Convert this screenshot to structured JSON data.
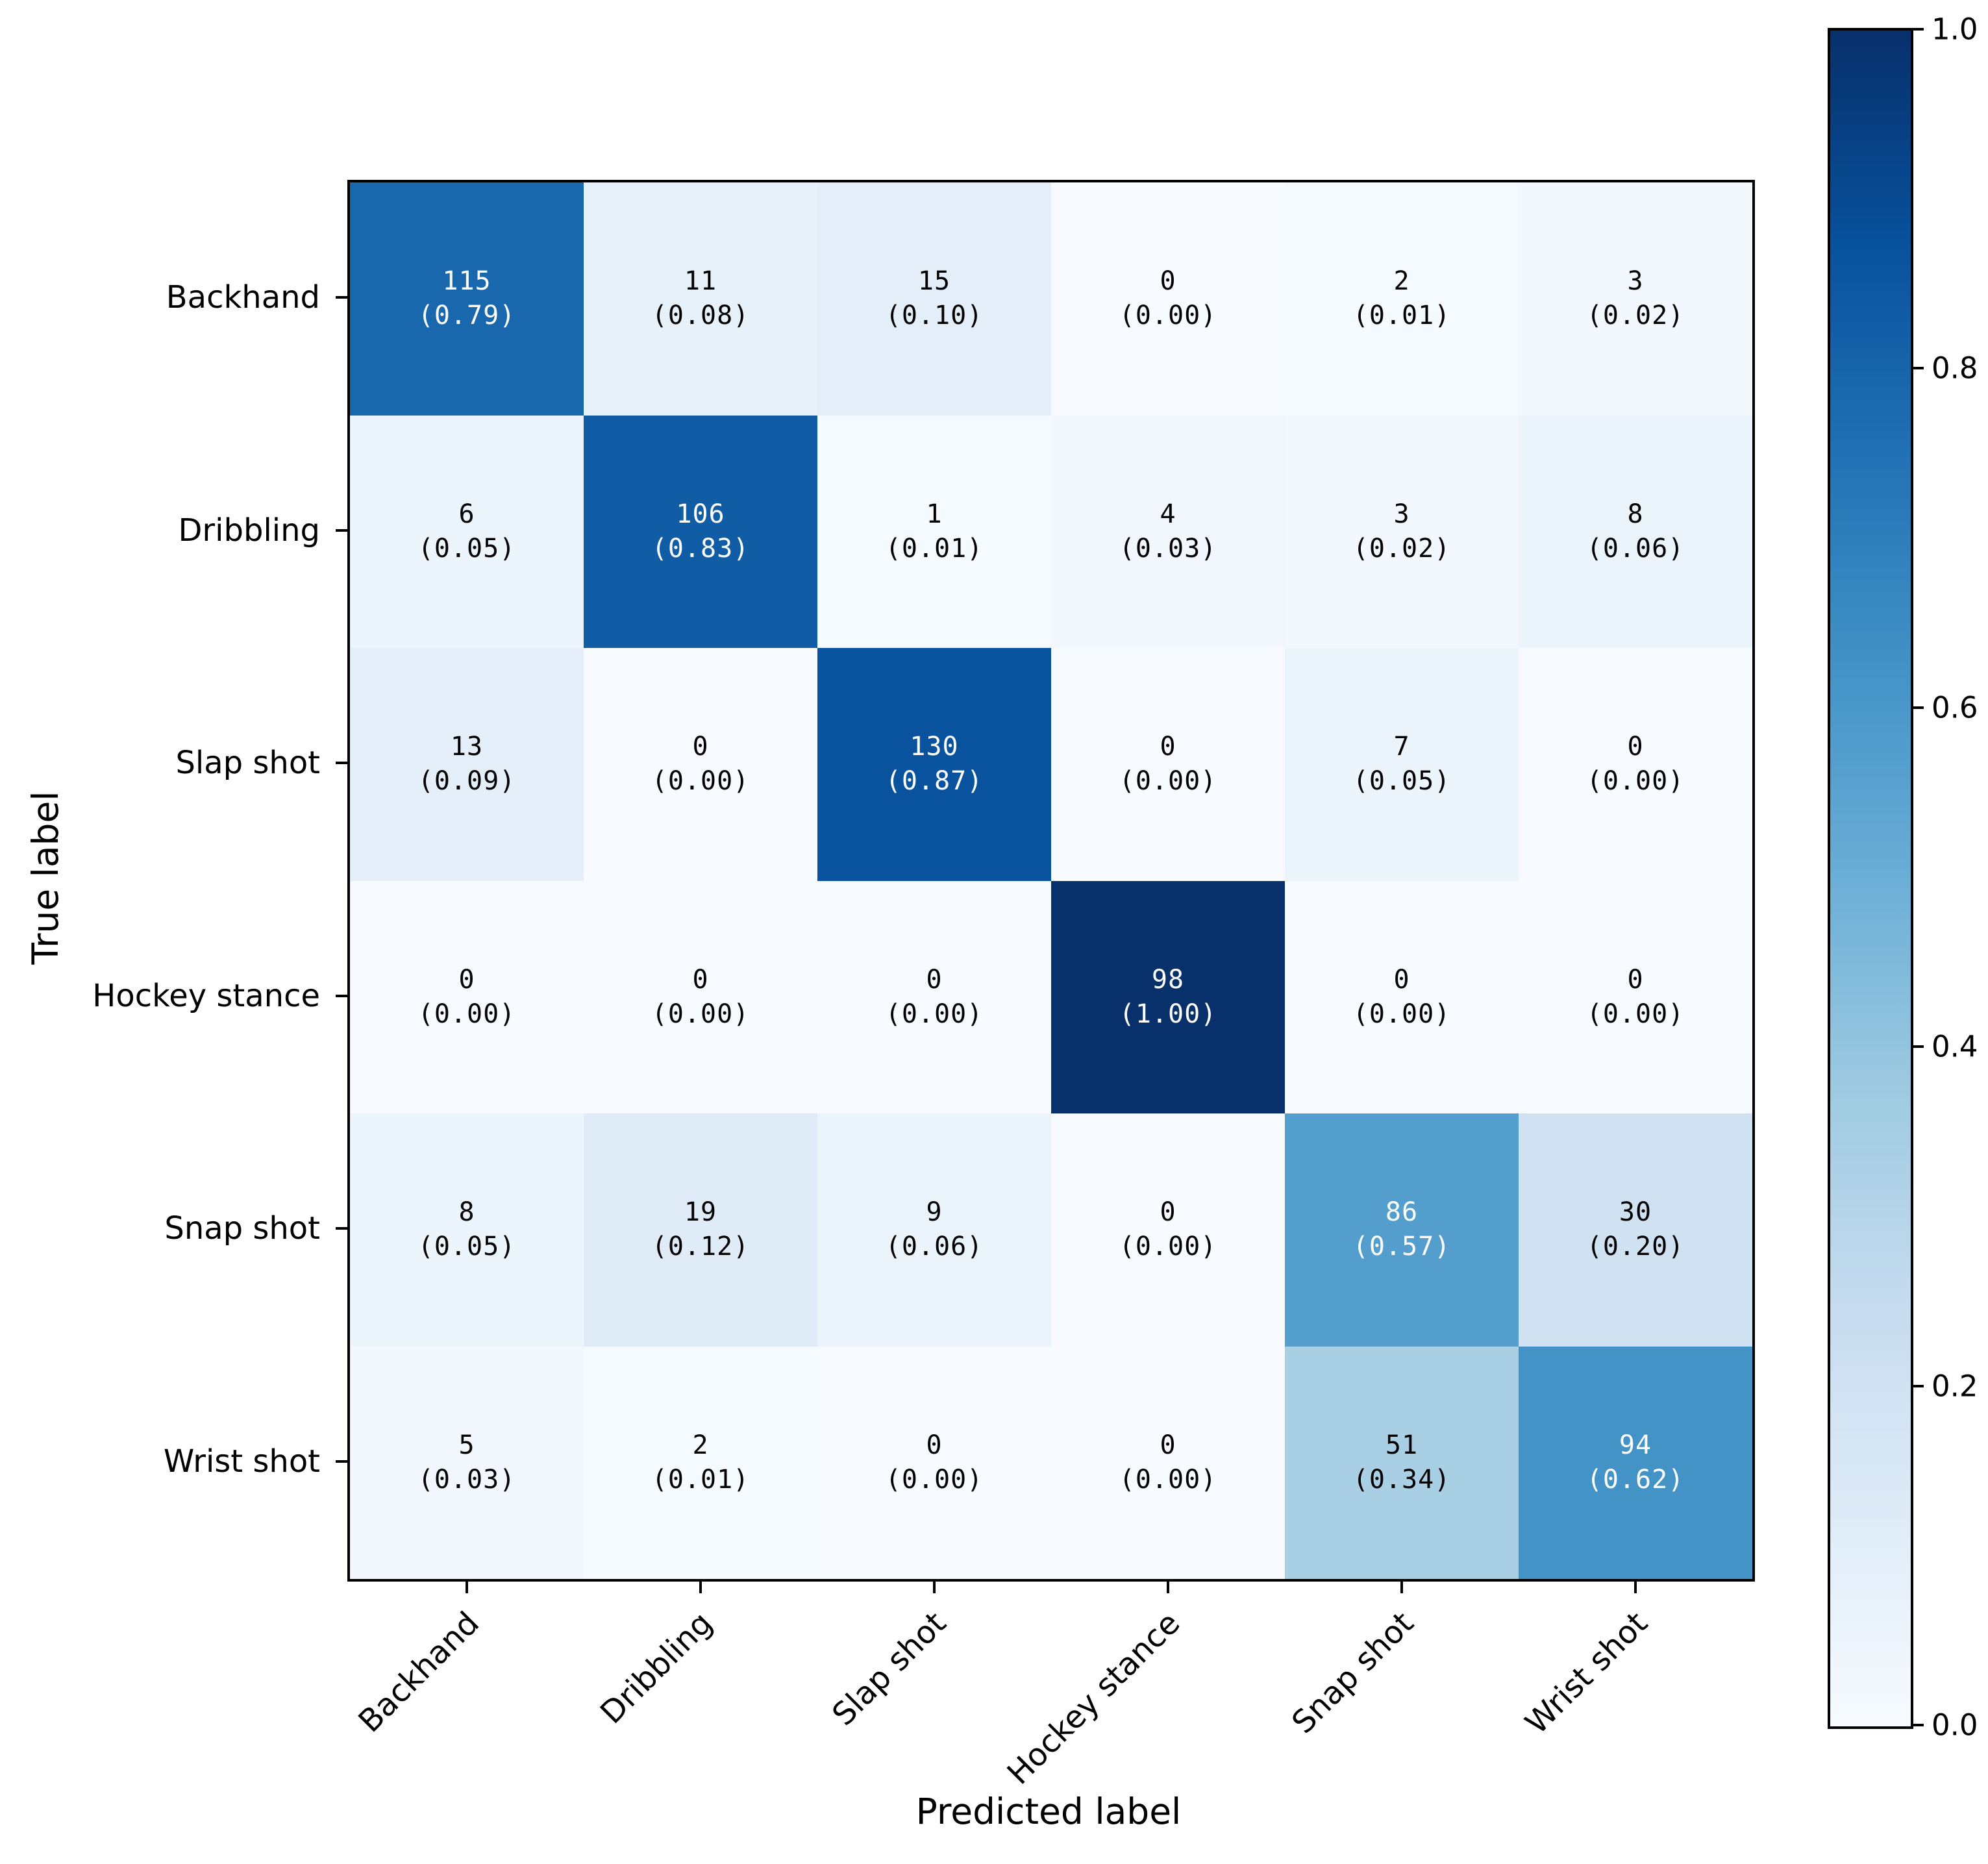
{
  "chart_data": {
    "type": "heatmap",
    "title": "",
    "xlabel": "Predicted label",
    "ylabel": "True label",
    "labels": [
      "Backhand",
      "Dribbling",
      "Slap shot",
      "Hockey stance",
      "Snap shot",
      "Wrist shot"
    ],
    "matrix_counts": [
      [
        115,
        11,
        15,
        0,
        2,
        3
      ],
      [
        6,
        106,
        1,
        4,
        3,
        8
      ],
      [
        13,
        0,
        130,
        0,
        7,
        0
      ],
      [
        0,
        0,
        0,
        98,
        0,
        0
      ],
      [
        8,
        19,
        9,
        0,
        86,
        30
      ],
      [
        5,
        2,
        0,
        0,
        51,
        94
      ]
    ],
    "matrix_ratios": [
      [
        0.79,
        0.08,
        0.1,
        0.0,
        0.01,
        0.02
      ],
      [
        0.05,
        0.83,
        0.01,
        0.03,
        0.02,
        0.06
      ],
      [
        0.09,
        0.0,
        0.87,
        0.0,
        0.05,
        0.0
      ],
      [
        0.0,
        0.0,
        0.0,
        1.0,
        0.0,
        0.0
      ],
      [
        0.05,
        0.12,
        0.06,
        0.0,
        0.57,
        0.2
      ],
      [
        0.03,
        0.01,
        0.0,
        0.0,
        0.34,
        0.62
      ]
    ],
    "cell_value_format": "count over (ratio to 2 decimals)",
    "colorbar": {
      "min": 0.0,
      "max": 1.0,
      "ticks": [
        1.0,
        0.8,
        0.6,
        0.4,
        0.2,
        0.0
      ]
    },
    "colormap": {
      "name": "Blues",
      "anchors": [
        {
          "pos": 0.0,
          "color": "#f7fbff"
        },
        {
          "pos": 0.125,
          "color": "#deebf7"
        },
        {
          "pos": 0.25,
          "color": "#c6dbef"
        },
        {
          "pos": 0.375,
          "color": "#9ecae1"
        },
        {
          "pos": 0.5,
          "color": "#6baed6"
        },
        {
          "pos": 0.625,
          "color": "#4292c6"
        },
        {
          "pos": 0.75,
          "color": "#2171b5"
        },
        {
          "pos": 0.875,
          "color": "#08519c"
        },
        {
          "pos": 1.0,
          "color": "#08306b"
        }
      ]
    },
    "cell_text": {
      "light": "#ffffff",
      "dark": "#000000",
      "threshold": 0.5
    },
    "axes": {
      "grid": false,
      "legend": "colorbar-right",
      "x_tick_rotation_deg": 45
    }
  }
}
